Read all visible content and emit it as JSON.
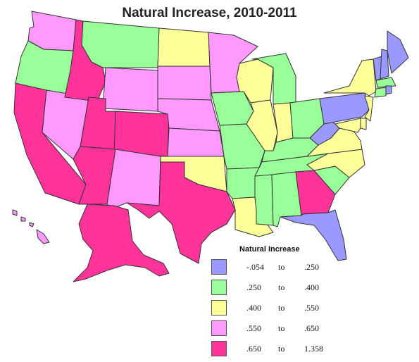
{
  "title": "Natural Increase, 2010-2011",
  "legend": {
    "title": "Natural Increase",
    "classes": [
      {
        "from": "-.054",
        "to_word": "to",
        "to": ".250",
        "color": "#9999ff"
      },
      {
        "from": ".250",
        "to_word": "to",
        "to": ".400",
        "color": "#99ff99"
      },
      {
        "from": ".400",
        "to_word": "to",
        "to": ".550",
        "color": "#ffff99"
      },
      {
        "from": ".550",
        "to_word": "to",
        "to": ".650",
        "color": "#ff99ff"
      },
      {
        "from": ".650",
        "to_word": "to",
        "to": "1.358",
        "color": "#ff3399"
      }
    ]
  },
  "states": {
    "WA": 3,
    "OR": 1,
    "CA": 4,
    "NV": 3,
    "ID": 4,
    "MT": 1,
    "WY": 3,
    "UT": 4,
    "AZ": 4,
    "CO": 4,
    "NM": 3,
    "ND": 2,
    "SD": 3,
    "NE": 3,
    "KS": 3,
    "OK": 2,
    "TX": 4,
    "MN": 3,
    "IA": 1,
    "MO": 1,
    "AR": 1,
    "LA": 2,
    "WI": 2,
    "IL": 2,
    "MI": 1,
    "IN": 2,
    "OH": 1,
    "KY": 1,
    "TN": 1,
    "MS": 1,
    "AL": 1,
    "GA": 4,
    "FL": 0,
    "SC": 1,
    "NC": 2,
    "VA": 2,
    "WV": 0,
    "PA": 0,
    "NY": 2,
    "VT": 0,
    "NH": 0,
    "ME": 0,
    "MA": 1,
    "CT": 1,
    "RI": 0,
    "NJ": 2,
    "DE": 2,
    "MD": 2,
    "AK": 4,
    "HI": 3
  }
}
